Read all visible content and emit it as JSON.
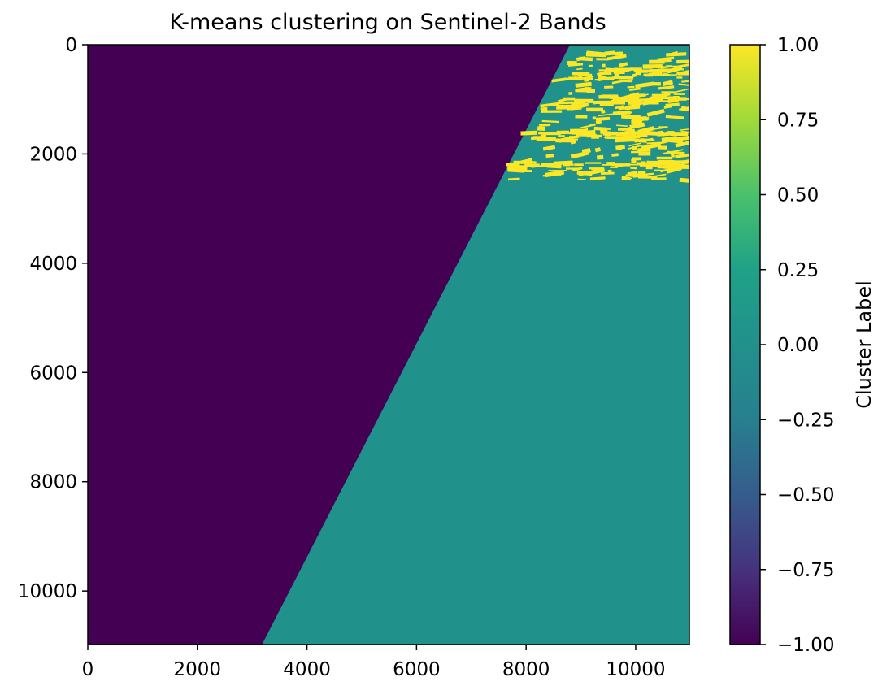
{
  "chart_data": {
    "type": "heatmap",
    "title": "K-means clustering on Sentinel-2 Bands",
    "xlabel": "",
    "ylabel": "",
    "xlim": [
      0,
      10980
    ],
    "ylim": [
      10980,
      0
    ],
    "x_ticks": [
      0,
      2000,
      4000,
      6000,
      8000,
      10000
    ],
    "x_tick_labels": [
      "0",
      "2000",
      "4000",
      "6000",
      "8000",
      "10000"
    ],
    "y_ticks": [
      0,
      2000,
      4000,
      6000,
      8000,
      10000
    ],
    "y_tick_labels": [
      "0",
      "2000",
      "4000",
      "6000",
      "8000",
      "10000"
    ],
    "colormap": "viridis",
    "value_range": [
      -1.0,
      1.0
    ],
    "clusters": [
      {
        "value": -1.0,
        "color": "#440154",
        "region": "no-data area left of the diagonal swath edge"
      },
      {
        "value": 0.0,
        "color": "#21918c",
        "region": "main swath, right of the diagonal edge"
      },
      {
        "value": 1.0,
        "color": "#fde725",
        "region": "scattered patches in the upper-right corner"
      }
    ],
    "swath_edge": {
      "top_x": 8800,
      "top_y": 0,
      "bottom_x": 3180,
      "bottom_y": 10980
    },
    "cluster_one_extent": {
      "x_range": [
        7650,
        10980
      ],
      "y_range": [
        150,
        2500
      ]
    },
    "colorbar": {
      "label": "Cluster Label",
      "ticks": [
        1.0,
        0.75,
        0.5,
        0.25,
        0.0,
        -0.25,
        -0.5,
        -0.75,
        -1.0
      ],
      "tick_labels": [
        "1.00",
        "0.75",
        "0.50",
        "0.25",
        "0.00",
        "−0.25",
        "−0.50",
        "−0.75",
        "−1.00"
      ]
    },
    "grid": false,
    "legend": "none"
  }
}
